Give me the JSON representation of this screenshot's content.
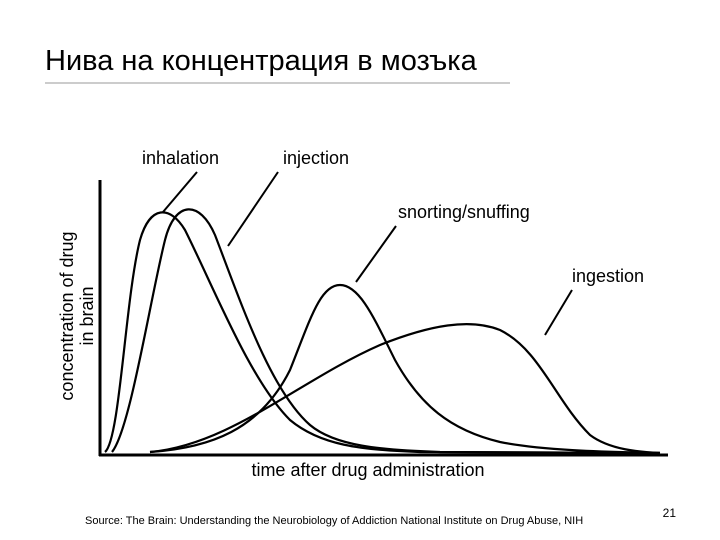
{
  "slide": {
    "title": "Нива на концентрация в мозъка",
    "diagram": {
      "labels": [
        "inhalation",
        "injection",
        "snorting/snuffing",
        "ingestion"
      ],
      "y_axis_label": [
        "concentration of drug",
        "in brain"
      ],
      "x_axis_label": "time after drug administration"
    },
    "page_number": "21",
    "source": "Source: The Brain: Understanding the Neurobiology of Addiction National Institute on Drug Abuse, NIH"
  }
}
